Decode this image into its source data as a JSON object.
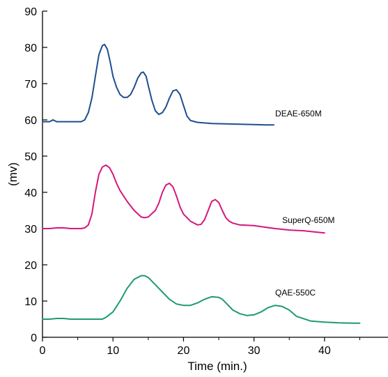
{
  "chart_data": {
    "type": "line",
    "title": "",
    "xlabel": "Time (min.)",
    "ylabel": "(mv)",
    "xlim": [
      0,
      49
    ],
    "ylim": [
      0,
      90
    ],
    "x_ticks": [
      0,
      10,
      20,
      30,
      40
    ],
    "y_ticks": [
      0,
      10,
      20,
      30,
      40,
      50,
      60,
      70,
      80,
      90
    ],
    "grid": false,
    "legend": "none",
    "series": [
      {
        "name": "DEAE-650M",
        "color": "#1f4e8c",
        "label_at": [
          33,
          61
        ],
        "x": [
          0,
          1,
          1.5,
          2,
          3,
          4,
          5,
          5.5,
          6,
          6.5,
          7,
          7.5,
          8,
          8.5,
          8.8,
          9.2,
          9.6,
          10,
          10.5,
          11,
          11.5,
          12,
          12.5,
          13,
          13.5,
          14,
          14.3,
          14.7,
          15,
          15.5,
          16,
          16.5,
          17,
          17.5,
          18,
          18.5,
          19,
          19.5,
          20,
          20.5,
          21,
          22,
          24,
          26,
          28,
          30,
          32,
          32.8
        ],
        "y": [
          59.5,
          59.5,
          60,
          59.5,
          59.5,
          59.5,
          59.5,
          59.5,
          60,
          62,
          66,
          72,
          78,
          80.5,
          80.8,
          79.5,
          76,
          72,
          69,
          67,
          66.2,
          66.2,
          67,
          69,
          71.5,
          73,
          73.2,
          72,
          69.5,
          65.5,
          62.5,
          61.5,
          62,
          63.5,
          66,
          68,
          68.3,
          67,
          64,
          61,
          59.8,
          59.3,
          59,
          58.9,
          58.8,
          58.7,
          58.6,
          58.6
        ]
      },
      {
        "name": "SuperQ-650M",
        "color": "#d4187a",
        "label_at": [
          34,
          31.5
        ],
        "x": [
          0,
          1,
          2,
          3,
          4,
          5,
          5.5,
          6,
          6.5,
          7,
          7.5,
          8,
          8.5,
          9,
          9.5,
          10,
          10.5,
          11,
          11.5,
          12,
          13,
          14,
          14.5,
          15,
          16,
          16.5,
          17,
          17.5,
          18,
          18.5,
          19,
          19.5,
          20,
          21,
          22,
          22.5,
          23,
          23.5,
          24,
          24.5,
          25,
          25.5,
          26,
          26.5,
          27,
          28,
          30,
          33,
          35,
          37,
          39,
          40
        ],
        "y": [
          30,
          30,
          30.2,
          30.2,
          30,
          30,
          30,
          30.2,
          31,
          34,
          40,
          45,
          47,
          47.5,
          46.8,
          45,
          42.5,
          40.5,
          39,
          37.5,
          35,
          33.2,
          33,
          33.2,
          35,
          37,
          40,
          42,
          42.5,
          41.5,
          39,
          36,
          34,
          32,
          31,
          31.2,
          32.5,
          35,
          37.5,
          38,
          37.2,
          35,
          33,
          32,
          31.5,
          31,
          30.8,
          30,
          29.6,
          29.4,
          29,
          28.8
        ]
      },
      {
        "name": "QAE-550C",
        "color": "#1f9a6e",
        "label_at": [
          33,
          11.5
        ],
        "x": [
          0,
          1,
          2,
          3,
          4,
          5,
          6,
          7,
          8,
          8.5,
          9,
          10,
          11,
          12,
          13,
          14,
          14.5,
          15,
          16,
          17,
          18,
          19,
          20,
          21,
          22,
          23,
          24,
          25,
          25.5,
          26,
          27,
          28,
          29,
          30,
          31,
          32,
          33,
          34,
          35,
          36,
          38,
          40,
          42,
          44,
          45
        ],
        "y": [
          5,
          5,
          5.2,
          5.2,
          5,
          5,
          5,
          5,
          5,
          5,
          5.5,
          7,
          10,
          13.5,
          16,
          17,
          17,
          16.5,
          14.5,
          12.5,
          10.5,
          9.2,
          8.8,
          8.8,
          9.5,
          10.5,
          11.2,
          11,
          10.5,
          9.5,
          7.5,
          6.5,
          6,
          6.2,
          7,
          8.2,
          8.8,
          8.5,
          7.5,
          5.8,
          4.5,
          4.2,
          4,
          3.9,
          3.9
        ]
      }
    ]
  }
}
